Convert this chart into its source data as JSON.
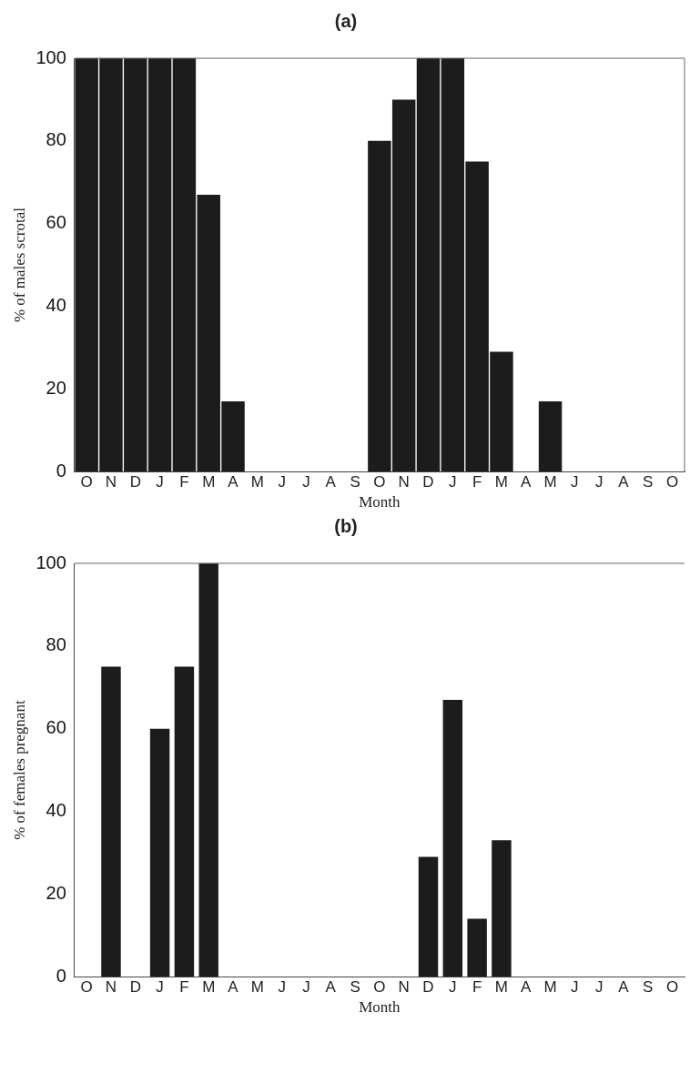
{
  "chart_data": [
    {
      "type": "bar",
      "title": "(a)",
      "xlabel": "Month",
      "ylabel": "% of males scrotal",
      "categories": [
        "O",
        "N",
        "D",
        "J",
        "F",
        "M",
        "A",
        "M",
        "J",
        "J",
        "A",
        "S",
        "O",
        "N",
        "D",
        "J",
        "F",
        "M",
        "A",
        "M",
        "J",
        "J",
        "A",
        "S",
        "O"
      ],
      "values": [
        100,
        100,
        100,
        100,
        100,
        67,
        17,
        0,
        0,
        0,
        0,
        0,
        80,
        90,
        100,
        100,
        75,
        29,
        0,
        17,
        0,
        0,
        0,
        0,
        0
      ],
      "color": "#1c1c1c",
      "ylim": [
        0,
        100
      ],
      "yticks": [
        0,
        20,
        40,
        60,
        80,
        100
      ],
      "grid": false,
      "legend": false
    },
    {
      "type": "bar",
      "title": "(b)",
      "xlabel": "Month",
      "ylabel": "% of females pregnant",
      "categories": [
        "O",
        "N",
        "D",
        "J",
        "F",
        "M",
        "A",
        "M",
        "J",
        "J",
        "A",
        "S",
        "O",
        "N",
        "D",
        "J",
        "F",
        "M",
        "A",
        "M",
        "J",
        "J",
        "A",
        "S",
        "O"
      ],
      "values": [
        0,
        75,
        0,
        60,
        75,
        100,
        0,
        0,
        0,
        0,
        0,
        0,
        0,
        0,
        29,
        67,
        14,
        33,
        0,
        0,
        0,
        0,
        0,
        0,
        0
      ],
      "color": "#1c1c1c",
      "ylim": [
        0,
        100
      ],
      "yticks": [
        0,
        20,
        40,
        60,
        80,
        100
      ],
      "grid": false,
      "legend": false
    }
  ]
}
